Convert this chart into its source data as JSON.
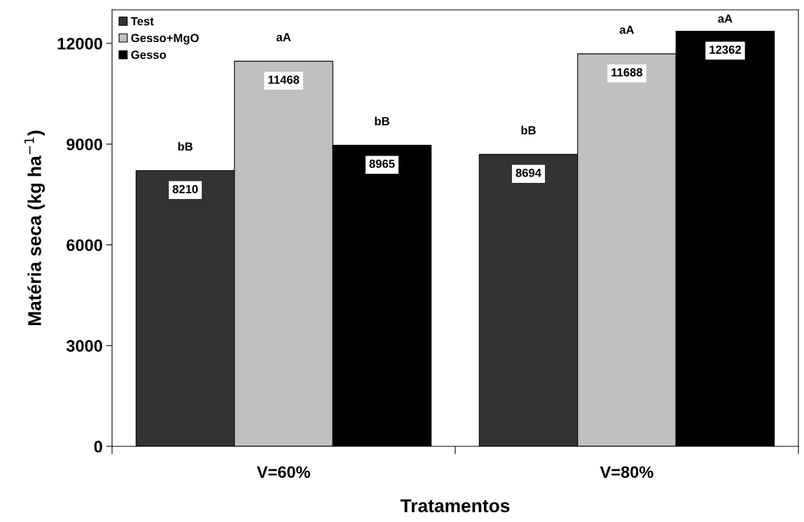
{
  "chart_data": {
    "type": "bar",
    "xlabel": "Tratamentos",
    "ylabel": "Matéria seca (kg ha$^{−1}$)",
    "categories": [
      "V=60%",
      "V=80%"
    ],
    "series": [
      {
        "name": "Test",
        "color": "#333333",
        "values": [
          8210,
          8694
        ]
      },
      {
        "name": "Gesso+MgO",
        "color": "#c0c0c0",
        "values": [
          11468,
          11688
        ]
      },
      {
        "name": "Gesso",
        "color": "#000000",
        "values": [
          8965,
          12362
        ]
      }
    ],
    "ylim": [
      0,
      13000
    ],
    "yticks": [
      0,
      3000,
      6000,
      9000,
      12000
    ],
    "data_labels": true,
    "legend": "top left",
    "grid": false,
    "annotations": [
      "bB",
      "aA",
      "bB",
      "bB",
      "aA",
      "aA"
    ]
  }
}
